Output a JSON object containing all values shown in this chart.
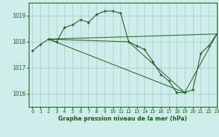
{
  "bg_color": "#ceecea",
  "grid_color": "#aacccc",
  "line_color": "#1a5c1a",
  "xlabel": "Graphe pression niveau de la mer (hPa)",
  "ylim": [
    1015.5,
    1019.5
  ],
  "xlim": [
    -0.5,
    23
  ],
  "yticks": [
    1016,
    1017,
    1018,
    1019
  ],
  "xticks": [
    0,
    1,
    2,
    3,
    4,
    5,
    6,
    7,
    8,
    9,
    10,
    11,
    12,
    13,
    14,
    15,
    16,
    17,
    18,
    19,
    20,
    21,
    22,
    23
  ],
  "main_line": {
    "x": [
      0,
      1,
      2,
      3,
      4,
      5,
      6,
      7,
      8,
      9,
      10,
      11,
      12,
      13,
      14,
      15,
      16,
      17,
      18,
      19,
      20,
      21,
      22,
      23
    ],
    "y": [
      1017.65,
      1017.9,
      1018.1,
      1018.0,
      1018.55,
      1018.65,
      1018.85,
      1018.75,
      1019.05,
      1019.18,
      1019.18,
      1019.1,
      1018.0,
      1017.85,
      1017.7,
      1017.25,
      1016.75,
      1016.5,
      1016.05,
      1016.05,
      1016.15,
      1017.55,
      1017.85,
      1018.3
    ]
  },
  "ref_lines": [
    {
      "x": [
        2,
        23
      ],
      "y": [
        1018.1,
        1018.3
      ]
    },
    {
      "x": [
        2,
        19,
        23
      ],
      "y": [
        1018.1,
        1016.05,
        1018.3
      ]
    },
    {
      "x": [
        2,
        12,
        19
      ],
      "y": [
        1018.1,
        1018.0,
        1016.05
      ]
    }
  ]
}
